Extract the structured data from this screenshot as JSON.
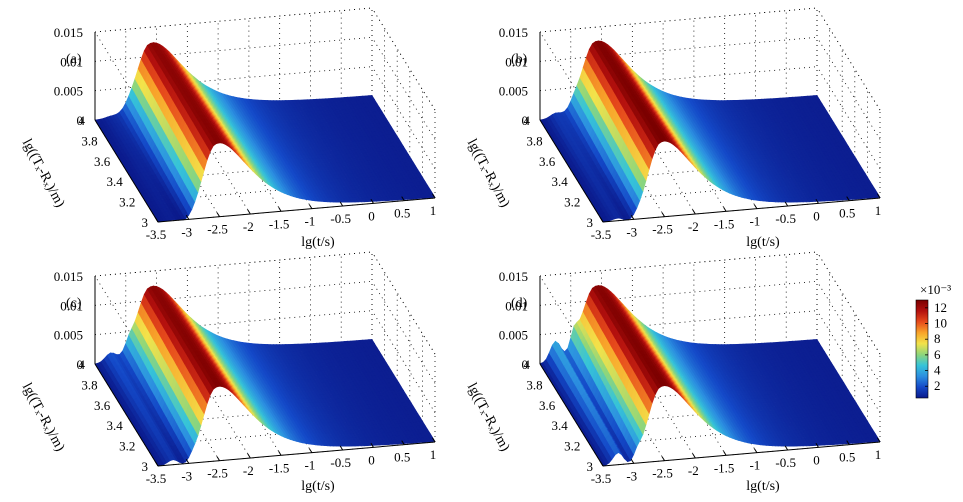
{
  "colors": {
    "colormap": [
      "#0b1a8c",
      "#1449c8",
      "#2c8fe0",
      "#36c4d8",
      "#8fd67a",
      "#f3e24a",
      "#f8a32a",
      "#e64a1c",
      "#b3100e",
      "#7a0000"
    ],
    "surface_min": "#13207a",
    "grid": "#000000"
  },
  "chart_data": [
    {
      "type": "surface",
      "panel_label": "(a)",
      "xlabel": "lg(t/s)",
      "ylabel": "lg((Tₓ-Rₓ)/m)",
      "xticks": [
        "-3.5",
        "-3",
        "-2.5",
        "-2",
        "-1.5",
        "-1",
        "-0.5",
        "0",
        "0.5",
        "1"
      ],
      "yticks": [
        "3",
        "3.2",
        "3.4",
        "3.6",
        "3.8",
        "4"
      ],
      "zticks": [
        "0",
        "0.005",
        "0.01",
        "0.015"
      ],
      "xlim": [
        -3.5,
        1
      ],
      "ylim": [
        3,
        4
      ],
      "zlim": [
        0,
        0.015
      ],
      "peak_log_t": -2.55,
      "peak_value": 0.0125,
      "early_bump": 0.0003
    },
    {
      "type": "surface",
      "panel_label": "(b)",
      "xlabel": "lg(t/s)",
      "ylabel": "lg((Tₓ-Rₓ)/m)",
      "xticks": [
        "-3.5",
        "-3",
        "-2.5",
        "-2",
        "-1.5",
        "-1",
        "-0.5",
        "0",
        "0.5",
        "1"
      ],
      "yticks": [
        "3",
        "3.2",
        "3.4",
        "3.6",
        "3.8",
        "4"
      ],
      "zticks": [
        "0",
        "0.005",
        "0.01",
        "0.015"
      ],
      "xlim": [
        -3.5,
        1
      ],
      "ylim": [
        3,
        4
      ],
      "zlim": [
        0,
        0.015
      ],
      "peak_log_t": -2.55,
      "peak_value": 0.0128,
      "early_bump": 0.0008
    },
    {
      "type": "surface",
      "panel_label": "(c)",
      "xlabel": "lg(t/s)",
      "ylabel": "lg((Tₓ-Rₓ)/m)",
      "xticks": [
        "-3.5",
        "-3",
        "-2.5",
        "-2",
        "-1.5",
        "-1",
        "-0.5",
        "0",
        "0.5",
        "1"
      ],
      "yticks": [
        "3",
        "3.2",
        "3.4",
        "3.6",
        "3.8",
        "4"
      ],
      "zticks": [
        "0",
        "0.005",
        "0.01",
        "0.015"
      ],
      "xlim": [
        -3.5,
        1
      ],
      "ylim": [
        3,
        4
      ],
      "zlim": [
        0,
        0.015
      ],
      "peak_log_t": -2.55,
      "peak_value": 0.0126,
      "early_bump": 0.0015
    },
    {
      "type": "surface",
      "panel_label": "(d)",
      "xlabel": "lg(t/s)",
      "ylabel": "lg((Tₓ-Rₓ)/m)",
      "xticks": [
        "-3.5",
        "-3",
        "-2.5",
        "-2",
        "-1.5",
        "-1",
        "-0.5",
        "0",
        "0.5",
        "1"
      ],
      "yticks": [
        "3",
        "3.2",
        "3.4",
        "3.6",
        "3.8",
        "4"
      ],
      "zticks": [
        "0",
        "0.005",
        "0.01",
        "0.015"
      ],
      "xlim": [
        -3.5,
        1
      ],
      "ylim": [
        3,
        4
      ],
      "zlim": [
        0,
        0.015
      ],
      "peak_log_t": -2.55,
      "peak_value": 0.0127,
      "early_bump": 0.0035
    }
  ],
  "colorbar": {
    "exponent_label": "×10⁻³",
    "ticks": [
      "2",
      "4",
      "6",
      "8",
      "10",
      "12"
    ],
    "range": [
      0.5,
      13
    ]
  }
}
